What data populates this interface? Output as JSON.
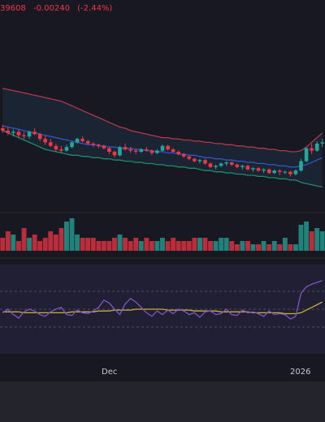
{
  "header": {
    "price_fragment": "39608",
    "change": "-0.00240",
    "change_pct": "(-2.44%)"
  },
  "x_axis": {
    "labels": [
      "Dec",
      "2026"
    ]
  },
  "colors": {
    "background": "#171821",
    "up": "#26a69a",
    "down": "#f23645",
    "bb_upper": "#b2384a",
    "bb_middle": "#2f58c9",
    "bb_lower": "#1e8c6a",
    "rsi": "#7e57c2",
    "rsi_ma": "#c9b037"
  },
  "chart_data": {
    "type": "candlestick",
    "title": "",
    "xlabel": "",
    "ylabel": "",
    "grid": false,
    "ylim": [
      0,
      100
    ],
    "candles": [
      {
        "o": 60,
        "h": 63,
        "l": 56,
        "c": 58
      },
      {
        "o": 58,
        "h": 61,
        "l": 54,
        "c": 56
      },
      {
        "o": 56,
        "h": 59,
        "l": 53,
        "c": 57
      },
      {
        "o": 57,
        "h": 59,
        "l": 52,
        "c": 54
      },
      {
        "o": 54,
        "h": 57,
        "l": 51,
        "c": 53
      },
      {
        "o": 53,
        "h": 58,
        "l": 51,
        "c": 57
      },
      {
        "o": 57,
        "h": 60,
        "l": 54,
        "c": 55
      },
      {
        "o": 55,
        "h": 56,
        "l": 49,
        "c": 51
      },
      {
        "o": 51,
        "h": 54,
        "l": 46,
        "c": 48
      },
      {
        "o": 48,
        "h": 51,
        "l": 44,
        "c": 45
      },
      {
        "o": 45,
        "h": 47,
        "l": 40,
        "c": 42
      },
      {
        "o": 42,
        "h": 45,
        "l": 39,
        "c": 41
      },
      {
        "o": 41,
        "h": 46,
        "l": 40,
        "c": 44
      },
      {
        "o": 44,
        "h": 49,
        "l": 43,
        "c": 48
      },
      {
        "o": 48,
        "h": 52,
        "l": 47,
        "c": 51
      },
      {
        "o": 51,
        "h": 53,
        "l": 48,
        "c": 49
      },
      {
        "o": 49,
        "h": 50,
        "l": 46,
        "c": 47
      },
      {
        "o": 47,
        "h": 48,
        "l": 44,
        "c": 46
      },
      {
        "o": 46,
        "h": 47,
        "l": 43,
        "c": 45
      },
      {
        "o": 45,
        "h": 46,
        "l": 42,
        "c": 43
      },
      {
        "o": 43,
        "h": 44,
        "l": 38,
        "c": 40
      },
      {
        "o": 40,
        "h": 41,
        "l": 35,
        "c": 37
      },
      {
        "o": 37,
        "h": 45,
        "l": 36,
        "c": 44
      },
      {
        "o": 44,
        "h": 47,
        "l": 41,
        "c": 42
      },
      {
        "o": 42,
        "h": 44,
        "l": 39,
        "c": 41
      },
      {
        "o": 41,
        "h": 43,
        "l": 38,
        "c": 40
      },
      {
        "o": 40,
        "h": 43,
        "l": 39,
        "c": 42
      },
      {
        "o": 42,
        "h": 44,
        "l": 40,
        "c": 41
      },
      {
        "o": 41,
        "h": 42,
        "l": 37,
        "c": 39
      },
      {
        "o": 39,
        "h": 42,
        "l": 38,
        "c": 41
      },
      {
        "o": 41,
        "h": 46,
        "l": 40,
        "c": 45
      },
      {
        "o": 45,
        "h": 46,
        "l": 41,
        "c": 42
      },
      {
        "o": 42,
        "h": 43,
        "l": 39,
        "c": 40
      },
      {
        "o": 40,
        "h": 41,
        "l": 37,
        "c": 38
      },
      {
        "o": 38,
        "h": 39,
        "l": 35,
        "c": 36
      },
      {
        "o": 36,
        "h": 37,
        "l": 33,
        "c": 34
      },
      {
        "o": 34,
        "h": 35,
        "l": 31,
        "c": 32
      },
      {
        "o": 32,
        "h": 34,
        "l": 30,
        "c": 33
      },
      {
        "o": 33,
        "h": 34,
        "l": 29,
        "c": 30
      },
      {
        "o": 30,
        "h": 31,
        "l": 26,
        "c": 27
      },
      {
        "o": 27,
        "h": 29,
        "l": 25,
        "c": 28
      },
      {
        "o": 28,
        "h": 31,
        "l": 27,
        "c": 30
      },
      {
        "o": 30,
        "h": 32,
        "l": 28,
        "c": 31
      },
      {
        "o": 31,
        "h": 32,
        "l": 28,
        "c": 29
      },
      {
        "o": 29,
        "h": 30,
        "l": 26,
        "c": 27
      },
      {
        "o": 27,
        "h": 29,
        "l": 25,
        "c": 28
      },
      {
        "o": 28,
        "h": 29,
        "l": 24,
        "c": 25
      },
      {
        "o": 25,
        "h": 27,
        "l": 23,
        "c": 26
      },
      {
        "o": 26,
        "h": 27,
        "l": 23,
        "c": 24
      },
      {
        "o": 24,
        "h": 26,
        "l": 22,
        "c": 25
      },
      {
        "o": 25,
        "h": 26,
        "l": 21,
        "c": 22
      },
      {
        "o": 22,
        "h": 25,
        "l": 21,
        "c": 24
      },
      {
        "o": 24,
        "h": 25,
        "l": 20,
        "c": 23
      },
      {
        "o": 23,
        "h": 24,
        "l": 21,
        "c": 23
      },
      {
        "o": 23,
        "h": 24,
        "l": 19,
        "c": 21
      },
      {
        "o": 21,
        "h": 25,
        "l": 20,
        "c": 24
      },
      {
        "o": 24,
        "h": 34,
        "l": 23,
        "c": 32
      },
      {
        "o": 32,
        "h": 44,
        "l": 31,
        "c": 43
      },
      {
        "o": 43,
        "h": 47,
        "l": 38,
        "c": 41
      },
      {
        "o": 41,
        "h": 49,
        "l": 40,
        "c": 47
      },
      {
        "o": 47,
        "h": 51,
        "l": 44,
        "c": 48
      }
    ],
    "bollinger": {
      "upper": [
        94,
        93,
        92,
        91,
        90,
        89,
        88,
        87,
        86,
        85,
        84,
        83,
        81,
        79,
        77,
        75,
        73,
        71,
        69,
        67,
        65,
        63,
        61,
        60,
        58,
        57,
        56,
        55,
        54,
        53,
        52,
        52,
        51,
        51,
        50,
        50,
        49,
        49,
        48,
        48,
        47,
        47,
        46,
        46,
        45,
        45,
        44,
        44,
        43,
        43,
        42,
        42,
        41,
        41,
        40,
        40,
        41,
        44,
        48,
        52,
        56
      ],
      "middle": [
        62,
        61,
        60,
        59,
        58,
        57,
        56,
        55,
        54,
        53,
        52,
        51,
        50,
        49,
        48,
        47,
        46,
        46,
        45,
        45,
        44,
        44,
        43,
        43,
        43,
        42,
        42,
        41,
        41,
        40,
        40,
        39,
        39,
        38,
        38,
        37,
        37,
        36,
        35,
        35,
        34,
        34,
        33,
        33,
        32,
        32,
        31,
        31,
        30,
        30,
        29,
        29,
        28,
        28,
        27,
        27,
        28,
        29,
        31,
        33,
        35
      ],
      "lower": [
        58,
        56,
        54,
        52,
        50,
        48,
        46,
        44,
        42,
        41,
        40,
        39,
        38,
        37,
        37,
        36,
        36,
        35,
        35,
        34,
        34,
        33,
        33,
        32,
        32,
        31,
        31,
        30,
        30,
        29,
        29,
        28,
        28,
        27,
        27,
        26,
        26,
        25,
        24,
        24,
        23,
        23,
        22,
        22,
        21,
        21,
        20,
        20,
        19,
        19,
        18,
        18,
        17,
        17,
        16,
        16,
        14,
        13,
        12,
        11,
        10
      ]
    },
    "volume": [
      4,
      6,
      5,
      3,
      7,
      4,
      5,
      3,
      4,
      6,
      5,
      7,
      9,
      10,
      5,
      4,
      4,
      4,
      3,
      3,
      3,
      4,
      5,
      4,
      3,
      4,
      3,
      4,
      3,
      3,
      4,
      3,
      4,
      3,
      3,
      3,
      4,
      4,
      4,
      3,
      3,
      4,
      4,
      3,
      2,
      3,
      3,
      2,
      2,
      3,
      2,
      3,
      2,
      4,
      2,
      2,
      8,
      9,
      6,
      7,
      6
    ],
    "rsi": [
      46,
      50,
      44,
      40,
      47,
      50,
      48,
      44,
      42,
      47,
      50,
      52,
      44,
      43,
      49,
      46,
      45,
      48,
      52,
      60,
      57,
      50,
      44,
      56,
      62,
      58,
      52,
      46,
      42,
      48,
      44,
      49,
      45,
      50,
      48,
      44,
      46,
      41,
      47,
      48,
      44,
      45,
      50,
      44,
      43,
      49,
      46,
      47,
      45,
      42,
      48,
      44,
      45,
      44,
      39,
      42,
      68,
      75,
      78,
      80,
      82
    ],
    "rsi_ma": [
      47,
      47,
      47,
      47,
      46,
      46,
      46,
      46,
      46,
      46,
      46,
      46,
      46,
      47,
      47,
      47,
      47,
      47,
      48,
      48,
      48,
      49,
      49,
      49,
      49,
      50,
      50,
      50,
      50,
      50,
      50,
      49,
      49,
      49,
      49,
      49,
      48,
      48,
      48,
      48,
      48,
      47,
      47,
      47,
      47,
      47,
      47,
      46,
      46,
      46,
      46,
      46,
      46,
      45,
      45,
      45,
      46,
      49,
      52,
      55,
      58
    ],
    "rsi_levels": [
      70,
      50,
      30
    ]
  }
}
